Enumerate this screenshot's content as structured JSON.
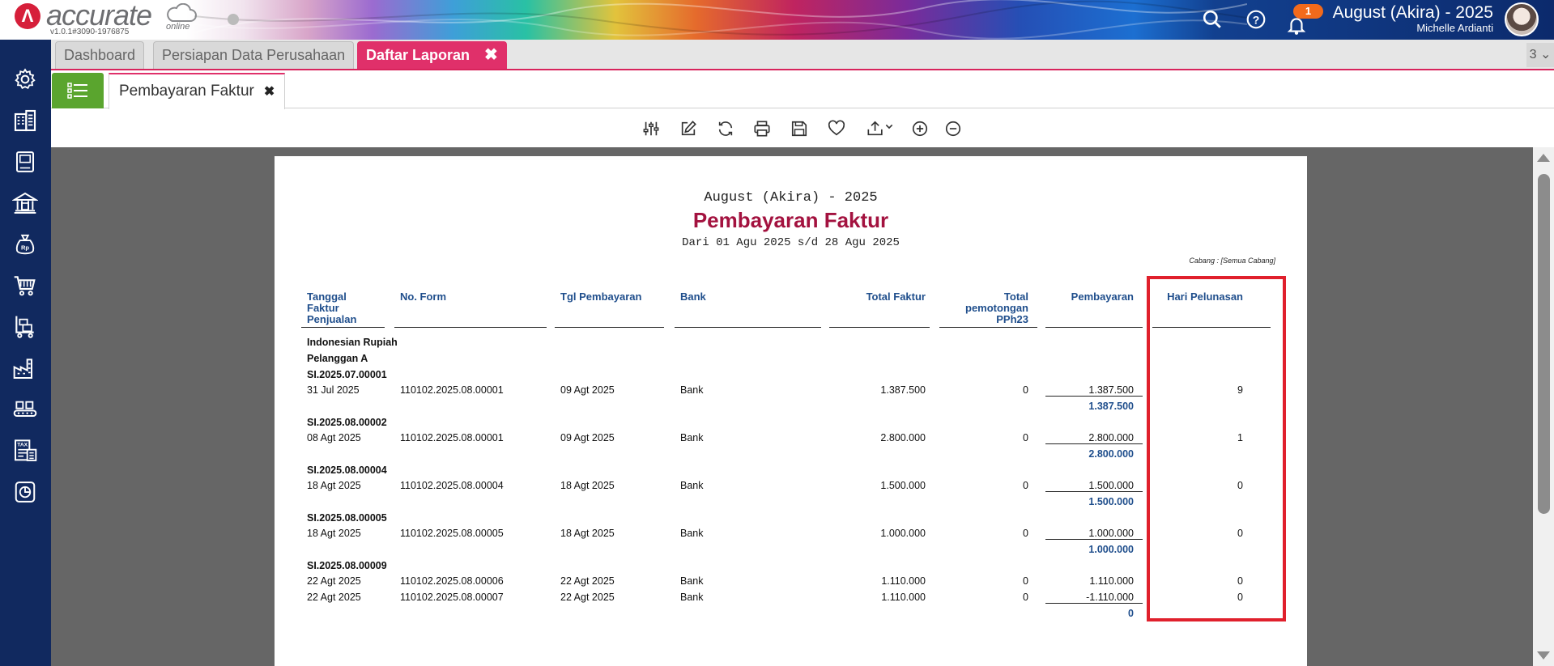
{
  "app": {
    "brand": "accurate",
    "brand_suffix": "online",
    "version": "v1.0.1#3090-1976875",
    "notification_count": "1",
    "company": "August (Akira) - 2025",
    "user": "Michelle Ardianti"
  },
  "module_tabs": [
    {
      "label": "Dashboard",
      "closable": false,
      "active": false
    },
    {
      "label": "Persiapan Data Perusahaan",
      "closable": false,
      "active": false
    },
    {
      "label": "Daftar Laporan",
      "closable": true,
      "active": true
    }
  ],
  "tab_count": "3",
  "sub_tab": {
    "label": "Pembayaran Faktur"
  },
  "sidebar": [
    "gear-icon",
    "building-icon",
    "book-icon",
    "bank-icon",
    "money-bag-icon",
    "cart-icon",
    "trolley-icon",
    "factory-icon",
    "conveyor-icon",
    "tax-icon",
    "report-icon"
  ],
  "toolbar": [
    "filter-icon",
    "edit-icon",
    "refresh-icon",
    "print-icon",
    "save-icon",
    "favorite-icon",
    "export-icon",
    "zoom-in-icon",
    "zoom-out-icon"
  ],
  "report": {
    "company": "August (Akira) - 2025",
    "title": "Pembayaran Faktur",
    "period": "Dari 01 Agu 2025 s/d 28 Agu 2025",
    "branch": "Cabang : [Semua Cabang]",
    "columns": {
      "tanggal": [
        "Tanggal",
        "Faktur",
        "Penjualan"
      ],
      "no_form": "No. Form",
      "tgl_pembayaran": "Tgl Pembayaran",
      "bank": "Bank",
      "total_faktur": "Total Faktur",
      "pph23": [
        "Total",
        "pemotongan",
        "PPh23"
      ],
      "pembayaran": "Pembayaran",
      "hari": "Hari Pelunasan"
    },
    "currency": "Indonesian Rupiah",
    "customer": "Pelanggan A",
    "groups": [
      {
        "invoice": "SI.2025.07.00001",
        "rows": [
          {
            "tanggal": "31 Jul 2025",
            "no_form": "110102.2025.08.00001",
            "tgl": "09 Agt 2025",
            "bank": "Bank",
            "total": "1.387.500",
            "pph": "0",
            "bayar": "1.387.500",
            "hari": "9"
          }
        ],
        "subtotal": "1.387.500"
      },
      {
        "invoice": "SI.2025.08.00002",
        "rows": [
          {
            "tanggal": "08 Agt 2025",
            "no_form": "110102.2025.08.00001",
            "tgl": "09 Agt 2025",
            "bank": "Bank",
            "total": "2.800.000",
            "pph": "0",
            "bayar": "2.800.000",
            "hari": "1"
          }
        ],
        "subtotal": "2.800.000"
      },
      {
        "invoice": "SI.2025.08.00004",
        "rows": [
          {
            "tanggal": "18 Agt 2025",
            "no_form": "110102.2025.08.00004",
            "tgl": "18 Agt 2025",
            "bank": "Bank",
            "total": "1.500.000",
            "pph": "0",
            "bayar": "1.500.000",
            "hari": "0"
          }
        ],
        "subtotal": "1.500.000"
      },
      {
        "invoice": "SI.2025.08.00005",
        "rows": [
          {
            "tanggal": "18 Agt 2025",
            "no_form": "110102.2025.08.00005",
            "tgl": "18 Agt 2025",
            "bank": "Bank",
            "total": "1.000.000",
            "pph": "0",
            "bayar": "1.000.000",
            "hari": "0"
          }
        ],
        "subtotal": "1.000.000"
      },
      {
        "invoice": "SI.2025.08.00009",
        "rows": [
          {
            "tanggal": "22 Agt 2025",
            "no_form": "110102.2025.08.00006",
            "tgl": "22 Agt 2025",
            "bank": "Bank",
            "total": "1.110.000",
            "pph": "0",
            "bayar": "1.110.000",
            "hari": "0"
          },
          {
            "tanggal": "22 Agt 2025",
            "no_form": "110102.2025.08.00007",
            "tgl": "22 Agt 2025",
            "bank": "Bank",
            "total": "1.110.000",
            "pph": "0",
            "bayar": "-1.110.000",
            "hari": "0"
          }
        ],
        "subtotal": "0"
      }
    ]
  },
  "colors": {
    "accent": "#e0306a",
    "sidebar": "#11295f",
    "title": "#a3123f",
    "header_text": "#1f4e8c",
    "highlight": "#e0202c",
    "menu_green": "#5aa52e"
  }
}
